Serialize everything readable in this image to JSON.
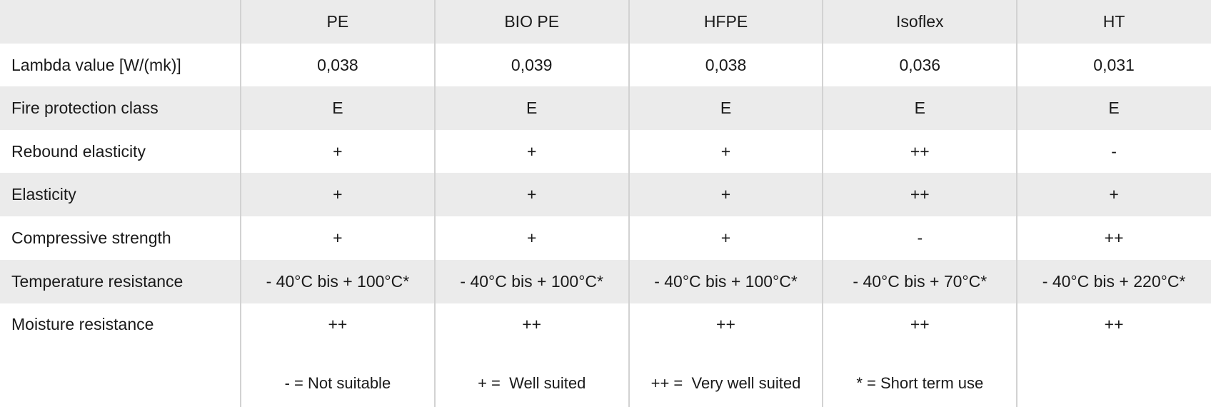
{
  "header": {
    "columns": [
      "PE",
      "BIO PE",
      "HFPE",
      "Isoflex",
      "HT"
    ]
  },
  "rows": [
    {
      "label": "Lambda value [W/(mk)]",
      "values": [
        "0,038",
        "0,039",
        "0,038",
        "0,036",
        "0,031"
      ]
    },
    {
      "label": "Fire protection class",
      "values": [
        "E",
        "E",
        "E",
        "E",
        "E"
      ]
    },
    {
      "label": "Rebound elasticity",
      "values": [
        "+",
        "+",
        "+",
        "++",
        "-"
      ]
    },
    {
      "label": "Elasticity",
      "values": [
        "+",
        "+",
        "+",
        "++",
        "+"
      ]
    },
    {
      "label": "Compressive strength",
      "values": [
        "+",
        "+",
        "+",
        "-",
        "++"
      ]
    },
    {
      "label": "Temperature resistance",
      "values": [
        "- 40°C bis + 100°C*",
        "- 40°C bis + 100°C*",
        "- 40°C bis + 100°C*",
        "- 40°C bis + 70°C*",
        "- 40°C bis + 220°C*"
      ]
    },
    {
      "label": "Moisture resistance",
      "values": [
        "++",
        "++",
        "++",
        "++",
        "++"
      ]
    }
  ],
  "legend": [
    "- = Not suitable",
    "+ =  Well suited",
    "++ =  Very well suited",
    "* = Short term use"
  ]
}
